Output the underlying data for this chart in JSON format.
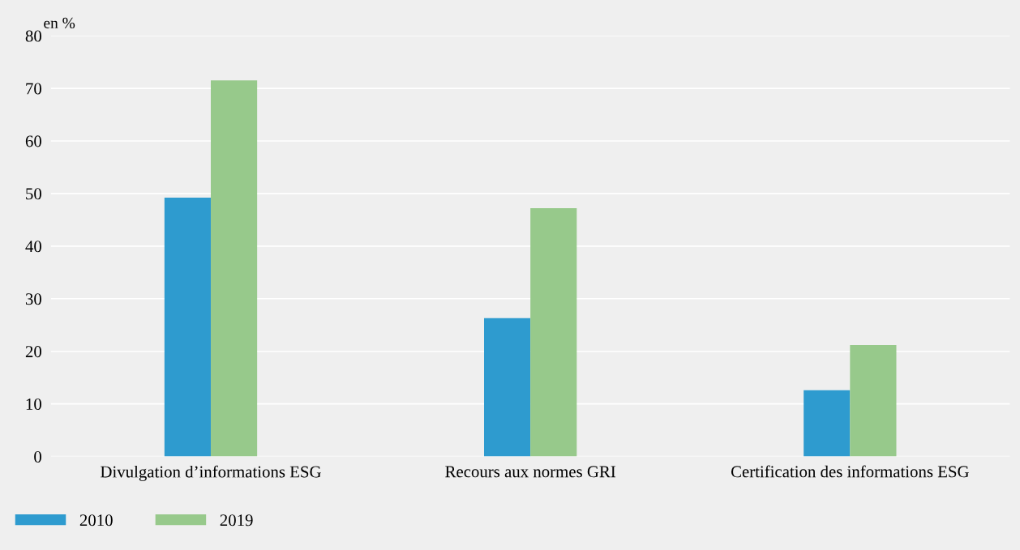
{
  "chart_data": {
    "type": "bar",
    "ylabel": "en %",
    "categories": [
      "Divulgation d’informations ESG",
      "Recours aux normes GRI",
      "Certification des informations ESG"
    ],
    "series": [
      {
        "name": "2010",
        "color": "#2e9bcf",
        "values": [
          49.2,
          26.3,
          12.6
        ]
      },
      {
        "name": "2019",
        "color": "#97c98b",
        "values": [
          71.5,
          47.2,
          21.2
        ]
      }
    ],
    "ylim": [
      0,
      80
    ],
    "yticks": [
      0,
      10,
      20,
      30,
      40,
      50,
      60,
      70,
      80
    ],
    "grid": "y",
    "legend": "bottom"
  }
}
